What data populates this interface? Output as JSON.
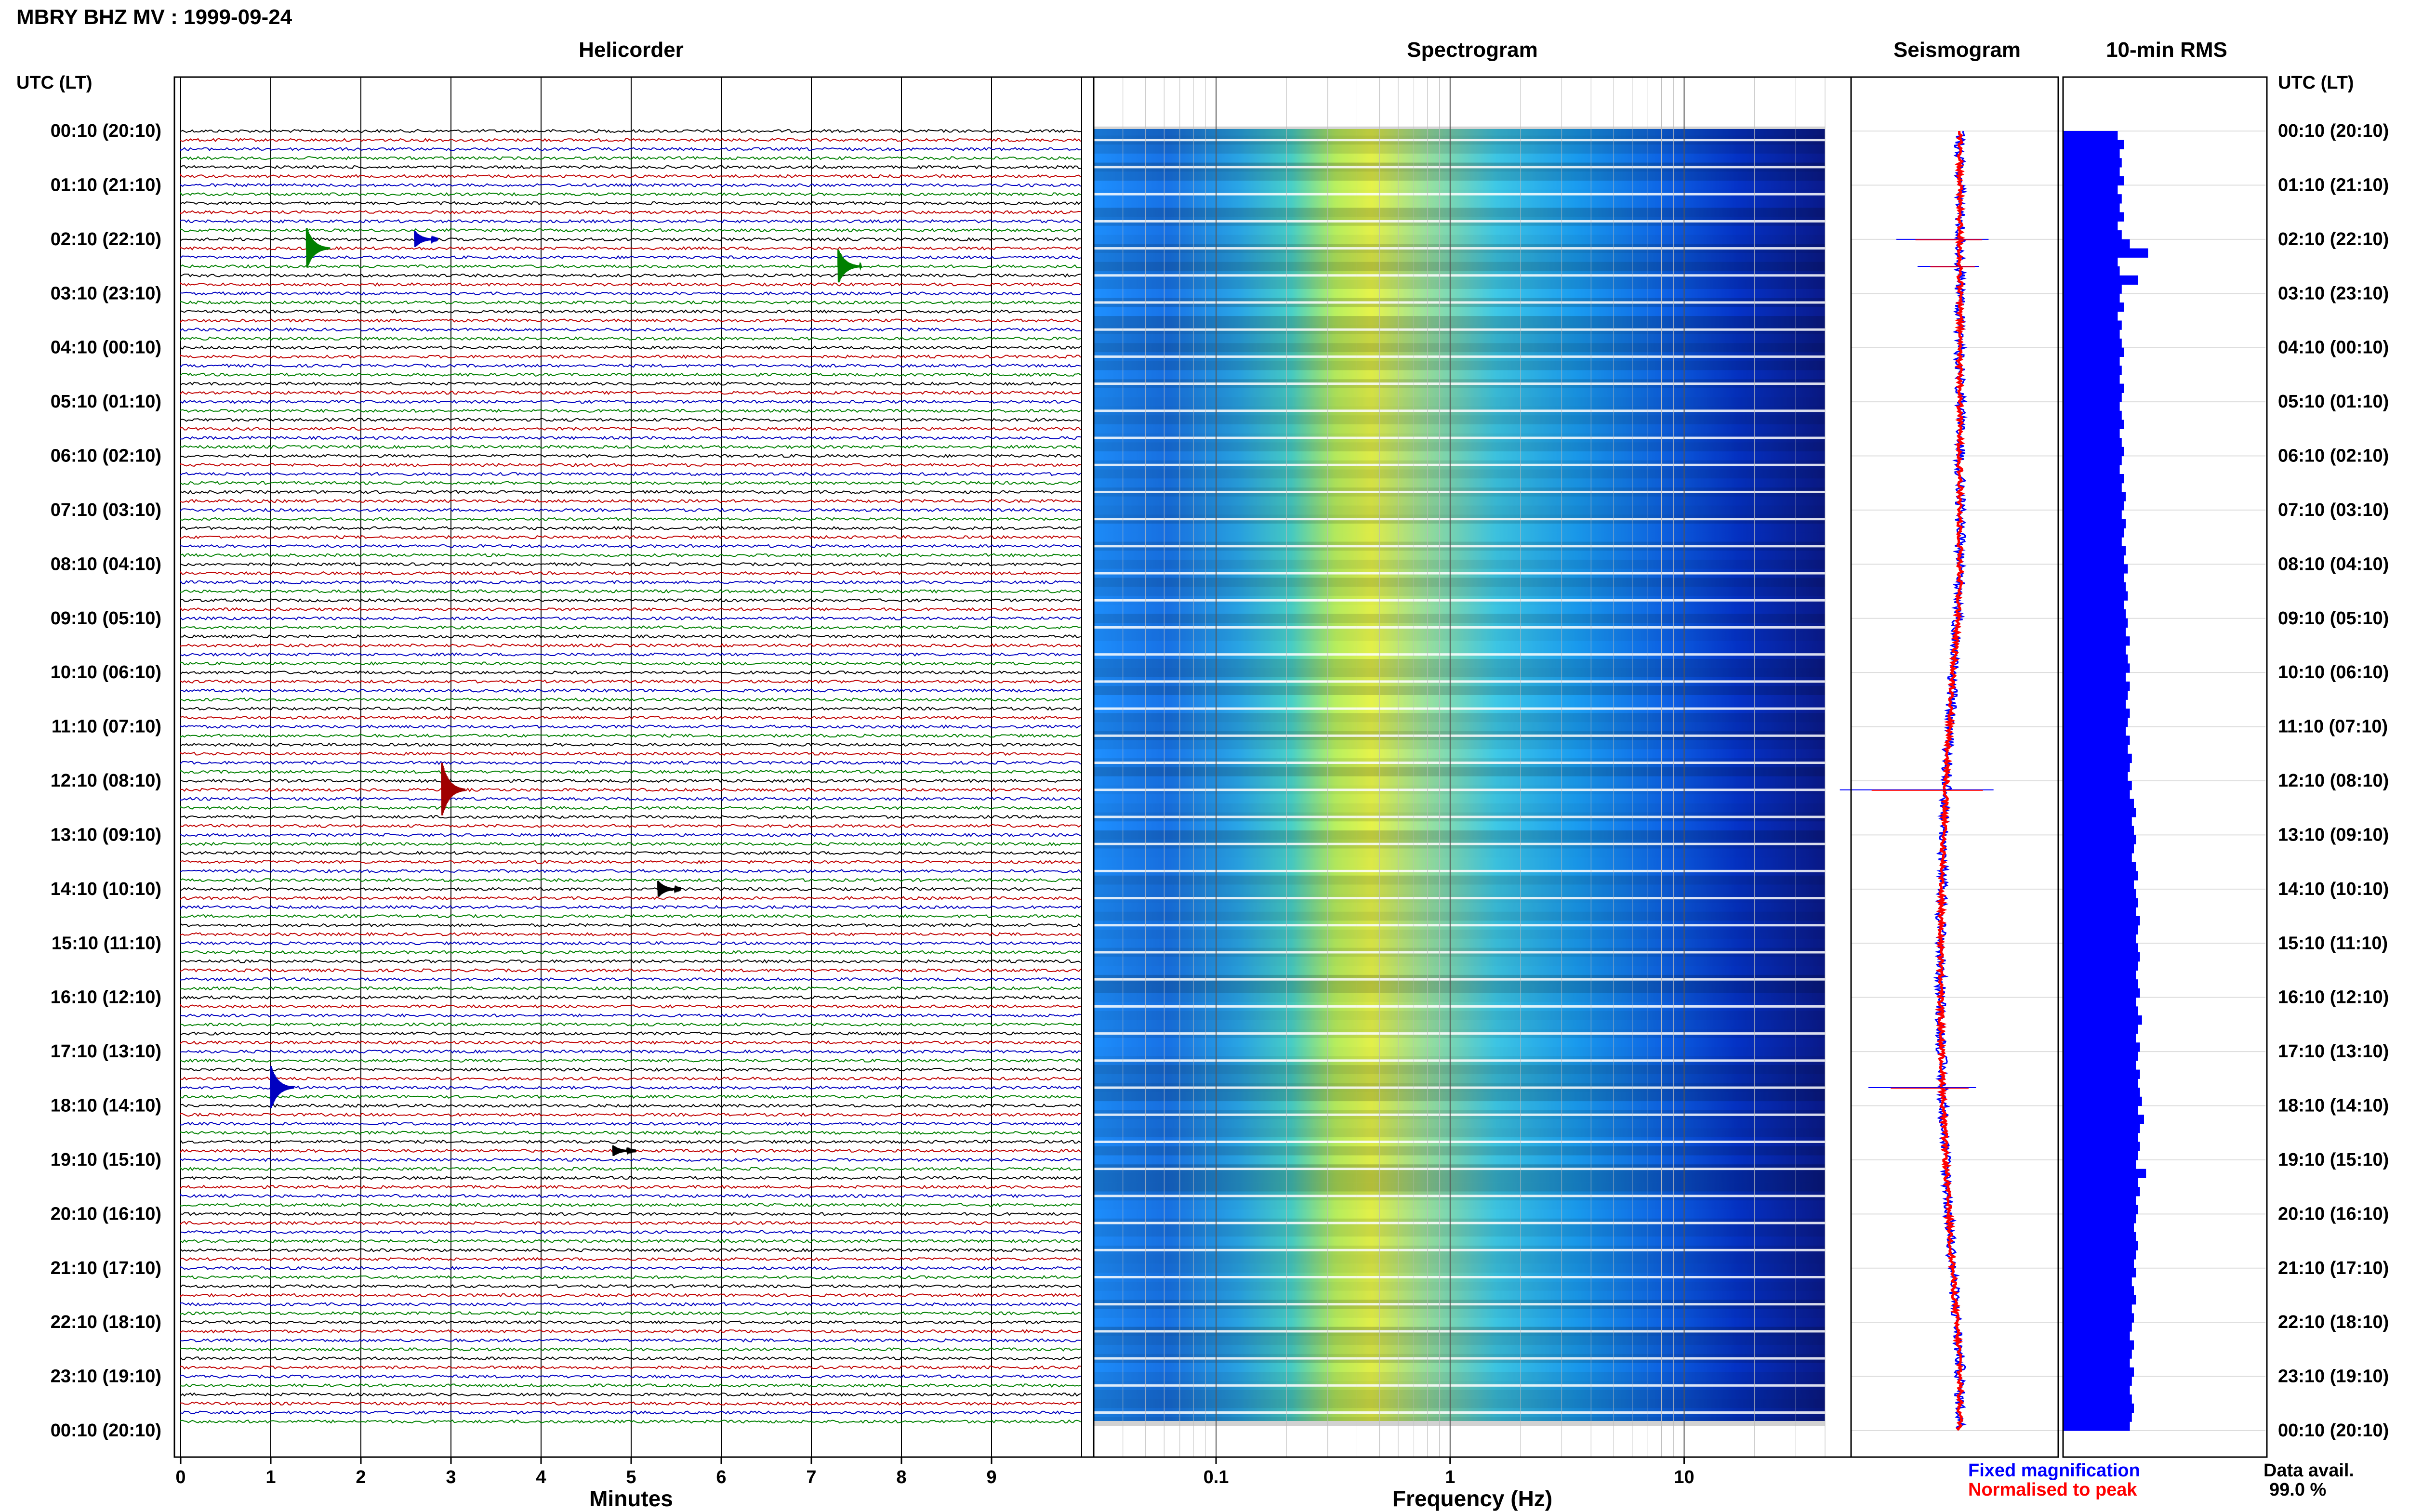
{
  "header": {
    "station_title": "MBRY BHZ MV : 1999-09-24",
    "col_titles": [
      "Helicorder",
      "Spectrogram",
      "Seismogram",
      "10-min RMS"
    ]
  },
  "axes": {
    "time_header_left": "UTC (LT)",
    "time_header_right": "UTC (LT)",
    "helicorder_xlabel": "Minutes",
    "spectrogram_xlabel": "Frequency (Hz)",
    "helicorder_xticks": [
      "0",
      "1",
      "2",
      "3",
      "4",
      "5",
      "6",
      "7",
      "8",
      "9"
    ],
    "spectrogram_xticks": [
      "0.1",
      "1",
      "10"
    ],
    "time_labels": [
      "00:10 (20:10)",
      "01:10 (21:10)",
      "02:10 (22:10)",
      "03:10 (23:10)",
      "04:10 (00:10)",
      "05:10 (01:10)",
      "06:10 (02:10)",
      "07:10 (03:10)",
      "08:10 (04:10)",
      "09:10 (05:10)",
      "10:10 (06:10)",
      "11:10 (07:10)",
      "12:10 (08:10)",
      "13:10 (09:10)",
      "14:10 (10:10)",
      "15:10 (11:10)",
      "16:10 (12:10)",
      "17:10 (13:10)",
      "18:10 (14:10)",
      "19:10 (15:10)",
      "20:10 (16:10)",
      "21:10 (17:10)",
      "22:10 (18:10)",
      "23:10 (19:10)",
      "00:10 (20:10)"
    ]
  },
  "legend": {
    "fixed": "Fixed magnification",
    "normalised": "Normalised to peak",
    "fixed_color": "#0000ff",
    "normalised_color": "#ff0000"
  },
  "availability": {
    "label": "Data avail.",
    "value": "99.0 %"
  },
  "chart_data": {
    "type": "heatmap",
    "helicorder": {
      "trace_colors": [
        "#000000",
        "#c00000",
        "#0000c0",
        "#008000"
      ],
      "minutes_range": [
        0,
        10
      ],
      "traces": 144,
      "events": [
        {
          "time": "02:20",
          "minute": 1.4,
          "color": "green",
          "amplitude": 3.0
        },
        {
          "time": "02:10",
          "minute": 2.6,
          "color": "blue",
          "amplitude": 1.2
        },
        {
          "time": "02:40",
          "minute": 7.3,
          "color": "green",
          "amplitude": 2.5
        },
        {
          "time": "12:20",
          "minute": 2.9,
          "color": "red",
          "amplitude": 4.0
        },
        {
          "time": "17:50",
          "minute": 1.0,
          "color": "blue",
          "amplitude": 3.2
        },
        {
          "time": "14:10",
          "minute": 5.3,
          "color": "black",
          "amplitude": 1.2
        },
        {
          "time": "19:00",
          "minute": 4.8,
          "color": "black",
          "amplitude": 0.8
        }
      ]
    },
    "spectrogram": {
      "freq_range_hz": [
        0.03,
        40
      ],
      "log_scale": true,
      "peak_band_hz": [
        0.2,
        0.6
      ],
      "colormap": [
        "#00008b",
        "#0000ff",
        "#1e90ff",
        "#00bfff",
        "#40e0d0",
        "#7cfc00",
        "#ffff00"
      ]
    },
    "seismogram": {
      "fixed_magnification_color": "#0000ff",
      "normalised_to_peak_color": "#ff0000",
      "spikes": [
        {
          "time": "02:10",
          "extent": 0.6
        },
        {
          "time": "02:40",
          "extent": 0.4
        },
        {
          "time": "12:20",
          "extent": 1.0
        },
        {
          "time": "17:50",
          "extent": 0.7
        }
      ]
    },
    "rms_10min": {
      "values": [
        0.27,
        0.3,
        0.28,
        0.29,
        0.28,
        0.3,
        0.27,
        0.29,
        0.28,
        0.3,
        0.27,
        0.29,
        0.33,
        0.42,
        0.27,
        0.28,
        0.37,
        0.29,
        0.28,
        0.3,
        0.27,
        0.29,
        0.28,
        0.29,
        0.3,
        0.28,
        0.29,
        0.28,
        0.3,
        0.29,
        0.28,
        0.29,
        0.3,
        0.28,
        0.29,
        0.3,
        0.29,
        0.28,
        0.3,
        0.29,
        0.31,
        0.3,
        0.29,
        0.31,
        0.3,
        0.29,
        0.31,
        0.3,
        0.32,
        0.3,
        0.31,
        0.32,
        0.3,
        0.31,
        0.32,
        0.31,
        0.33,
        0.31,
        0.32,
        0.33,
        0.31,
        0.33,
        0.32,
        0.31,
        0.33,
        0.32,
        0.31,
        0.33,
        0.32,
        0.34,
        0.33,
        0.32,
        0.34,
        0.33,
        0.35,
        0.36,
        0.34,
        0.35,
        0.36,
        0.35,
        0.34,
        0.36,
        0.37,
        0.35,
        0.36,
        0.37,
        0.36,
        0.38,
        0.37,
        0.36,
        0.37,
        0.38,
        0.37,
        0.36,
        0.37,
        0.38,
        0.36,
        0.37,
        0.39,
        0.37,
        0.36,
        0.38,
        0.37,
        0.36,
        0.38,
        0.37,
        0.38,
        0.39,
        0.37,
        0.4,
        0.38,
        0.37,
        0.38,
        0.37,
        0.36,
        0.41,
        0.37,
        0.38,
        0.36,
        0.37,
        0.36,
        0.35,
        0.36,
        0.37,
        0.36,
        0.35,
        0.36,
        0.34,
        0.35,
        0.36,
        0.34,
        0.35,
        0.34,
        0.33,
        0.35,
        0.34,
        0.33,
        0.35,
        0.34,
        0.33,
        0.34,
        0.35,
        0.34,
        0.33
      ],
      "max_value": 1.0,
      "color": "#0000ff"
    }
  }
}
